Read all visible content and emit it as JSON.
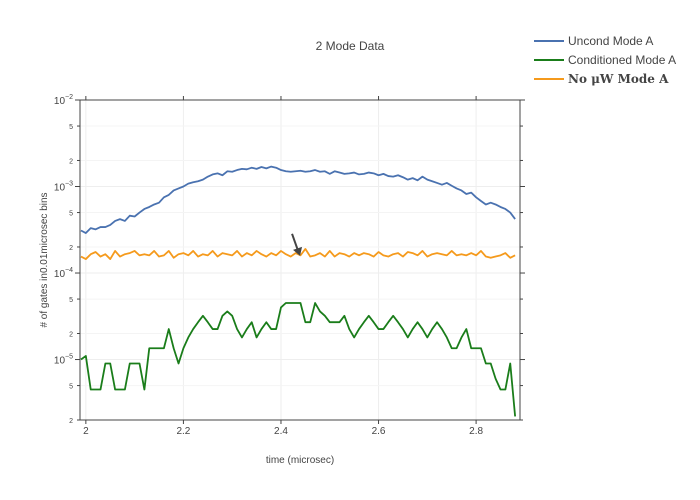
{
  "chart_data": {
    "type": "line",
    "title": "2 Mode Data",
    "xlabel": "time (microsec)",
    "ylabel": "# of gates in0.01microsec bins",
    "xlim": [
      1.988,
      2.89
    ],
    "ylog": true,
    "ylim": [
      2e-06,
      0.01
    ],
    "grid": true,
    "legend_position": "top-right",
    "x_ticks": [
      {
        "value": 2.0,
        "label": "2"
      },
      {
        "value": 2.2,
        "label": "2.2"
      },
      {
        "value": 2.4,
        "label": "2.4"
      },
      {
        "value": 2.6,
        "label": "2.6"
      },
      {
        "value": 2.8,
        "label": "2.8"
      }
    ],
    "y_major_ticks": [
      {
        "value": 0.01,
        "base": "10",
        "exp": "−2"
      },
      {
        "value": 0.001,
        "base": "10",
        "exp": "−3"
      },
      {
        "value": 0.0001,
        "base": "10",
        "exp": "−4"
      },
      {
        "value": 1e-05,
        "base": "10",
        "exp": "−5"
      }
    ],
    "y_minor_ticks": [
      {
        "value": 0.005,
        "label": "5"
      },
      {
        "value": 0.002,
        "label": "2"
      },
      {
        "value": 0.0005,
        "label": "5"
      },
      {
        "value": 0.0002,
        "label": "2"
      },
      {
        "value": 5e-05,
        "label": "5"
      },
      {
        "value": 2e-05,
        "label": "2"
      },
      {
        "value": 5e-06,
        "label": "5"
      },
      {
        "value": 2e-06,
        "label": "2"
      }
    ],
    "x": [
      1.99,
      2.0,
      2.01,
      2.02,
      2.03,
      2.04,
      2.05,
      2.06,
      2.07,
      2.08,
      2.09,
      2.1,
      2.11,
      2.12,
      2.13,
      2.14,
      2.15,
      2.16,
      2.17,
      2.18,
      2.19,
      2.2,
      2.21,
      2.22,
      2.23,
      2.24,
      2.25,
      2.26,
      2.27,
      2.28,
      2.29,
      2.3,
      2.31,
      2.32,
      2.33,
      2.34,
      2.35,
      2.36,
      2.37,
      2.38,
      2.39,
      2.4,
      2.41,
      2.42,
      2.43,
      2.44,
      2.45,
      2.46,
      2.47,
      2.48,
      2.49,
      2.5,
      2.51,
      2.52,
      2.53,
      2.54,
      2.55,
      2.56,
      2.57,
      2.58,
      2.59,
      2.6,
      2.61,
      2.62,
      2.63,
      2.64,
      2.65,
      2.66,
      2.67,
      2.68,
      2.69,
      2.7,
      2.71,
      2.72,
      2.73,
      2.74,
      2.75,
      2.76,
      2.77,
      2.78,
      2.79,
      2.8,
      2.81,
      2.82,
      2.83,
      2.84,
      2.85,
      2.86,
      2.87,
      2.88
    ],
    "series": [
      {
        "name": "Uncond Mode A",
        "color": "#4a72b0",
        "values": [
          0.00031,
          0.00029,
          0.00033,
          0.00032,
          0.00034,
          0.00034,
          0.00036,
          0.0004,
          0.00042,
          0.0004,
          0.00046,
          0.00045,
          0.0005,
          0.00055,
          0.00058,
          0.00062,
          0.00065,
          0.00075,
          0.0008,
          0.0009,
          0.00095,
          0.001,
          0.00108,
          0.00112,
          0.00115,
          0.0012,
          0.0013,
          0.00138,
          0.00142,
          0.00135,
          0.0015,
          0.00148,
          0.00155,
          0.0016,
          0.00158,
          0.00165,
          0.0016,
          0.00168,
          0.00162,
          0.0017,
          0.00165,
          0.00155,
          0.0015,
          0.00148,
          0.0015,
          0.00152,
          0.00148,
          0.0015,
          0.00155,
          0.00148,
          0.0015,
          0.0014,
          0.0015,
          0.00145,
          0.0014,
          0.00142,
          0.00145,
          0.00138,
          0.0014,
          0.00145,
          0.00142,
          0.00135,
          0.0014,
          0.00132,
          0.0013,
          0.00135,
          0.00128,
          0.0012,
          0.00125,
          0.00118,
          0.0013,
          0.0012,
          0.00115,
          0.0011,
          0.00105,
          0.0011,
          0.00102,
          0.00095,
          0.0009,
          0.00082,
          0.00085,
          0.00075,
          0.00068,
          0.00062,
          0.00065,
          0.00062,
          0.00058,
          0.00055,
          0.0005,
          0.00042
        ]
      },
      {
        "name": "Conditioned Mode A",
        "color": "#1a7d1a",
        "values": [
          1e-05,
          1.1e-05,
          4.5e-06,
          4.5e-06,
          4.5e-06,
          9e-06,
          9e-06,
          4.5e-06,
          4.5e-06,
          4.5e-06,
          9e-06,
          9e-06,
          9e-06,
          4.5e-06,
          1.35e-05,
          1.35e-05,
          1.35e-05,
          1.35e-05,
          2.25e-05,
          1.35e-05,
          9e-06,
          1.35e-05,
          1.8e-05,
          2.25e-05,
          2.7e-05,
          3.2e-05,
          2.7e-05,
          2.25e-05,
          2.25e-05,
          3.2e-05,
          3.6e-05,
          3.2e-05,
          2.25e-05,
          1.8e-05,
          2.25e-05,
          2.7e-05,
          1.8e-05,
          2.25e-05,
          2.7e-05,
          2.25e-05,
          2.25e-05,
          4e-05,
          4.5e-05,
          4.5e-05,
          4.5e-05,
          4.5e-05,
          2.7e-05,
          2.7e-05,
          4.5e-05,
          3.6e-05,
          3.2e-05,
          2.7e-05,
          2.7e-05,
          2.7e-05,
          3.2e-05,
          2.25e-05,
          1.8e-05,
          2.25e-05,
          2.7e-05,
          3.2e-05,
          2.7e-05,
          2.25e-05,
          2.25e-05,
          2.7e-05,
          3.2e-05,
          2.7e-05,
          2.25e-05,
          1.8e-05,
          2.25e-05,
          2.7e-05,
          2.25e-05,
          1.8e-05,
          2.25e-05,
          2.7e-05,
          2.25e-05,
          1.8e-05,
          1.35e-05,
          1.35e-05,
          1.8e-05,
          2.25e-05,
          1.35e-05,
          1.35e-05,
          1.35e-05,
          9e-06,
          9e-06,
          6e-06,
          4.5e-06,
          4.5e-06,
          9e-06,
          2.2e-06
        ]
      },
      {
        "name": "No μW Mode A",
        "color": "#f59a1c",
        "values": [
          0.000155,
          0.000145,
          0.000165,
          0.000175,
          0.000155,
          0.000165,
          0.000145,
          0.00018,
          0.000155,
          0.000165,
          0.00017,
          0.00018,
          0.00016,
          0.000165,
          0.00016,
          0.00018,
          0.000155,
          0.00016,
          0.00018,
          0.00015,
          0.000165,
          0.00017,
          0.00016,
          0.00018,
          0.000155,
          0.000165,
          0.00016,
          0.00018,
          0.000155,
          0.00017,
          0.000165,
          0.00016,
          0.00018,
          0.000155,
          0.00017,
          0.00016,
          0.00018,
          0.000165,
          0.000155,
          0.00017,
          0.00016,
          0.00018,
          0.000165,
          0.000155,
          0.00017,
          0.00016,
          0.00019,
          0.000155,
          0.00016,
          0.00017,
          0.000155,
          0.00018,
          0.000155,
          0.00017,
          0.000165,
          0.000155,
          0.00017,
          0.00016,
          0.00017,
          0.000165,
          0.000155,
          0.000175,
          0.00016,
          0.000155,
          0.000165,
          0.00017,
          0.000155,
          0.000175,
          0.00017,
          0.00016,
          0.00018,
          0.000155,
          0.000165,
          0.00017,
          0.000165,
          0.00016,
          0.00018,
          0.00016,
          0.000165,
          0.00016,
          0.00017,
          0.00016,
          0.00018,
          0.000155,
          0.00015,
          0.000155,
          0.00016,
          0.00017,
          0.00015,
          0.00016
        ]
      }
    ],
    "annotation": {
      "type": "arrow",
      "x": 2.435,
      "y": 0.000158
    }
  }
}
